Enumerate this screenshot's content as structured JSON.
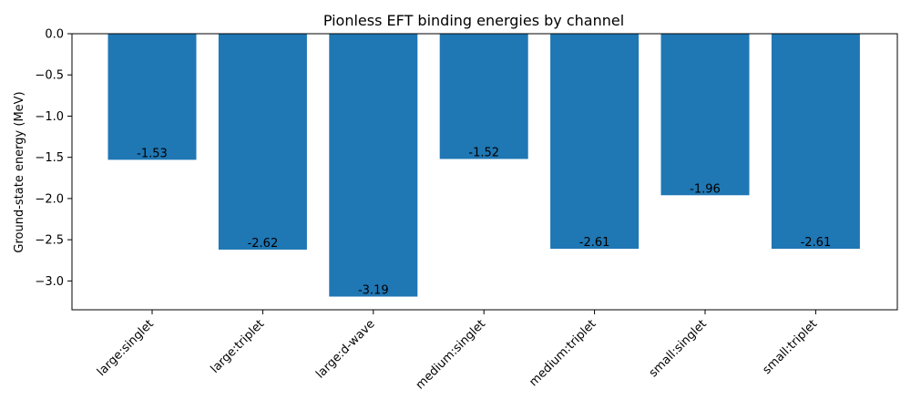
{
  "chart_data": {
    "type": "bar",
    "title": "Pionless EFT binding energies by channel",
    "xlabel": "",
    "ylabel": "Ground-state energy (MeV)",
    "categories": [
      "large:singlet",
      "large:triplet",
      "large:d-wave",
      "medium:singlet",
      "medium:triplet",
      "small:singlet",
      "small:triplet"
    ],
    "values": [
      -1.53,
      -2.62,
      -3.19,
      -1.52,
      -2.61,
      -1.96,
      -2.61
    ],
    "data_labels": [
      "-1.53",
      "-2.62",
      "-3.19",
      "-1.52",
      "-2.61",
      "-1.96",
      "-2.61"
    ],
    "ylim": [
      -3.35,
      0.0
    ],
    "yticks": [
      0.0,
      -0.5,
      -1.0,
      -1.5,
      -2.0,
      -2.5,
      -3.0
    ],
    "ytick_labels": [
      "0.0",
      "−0.5",
      "−1.0",
      "−1.5",
      "−2.0",
      "−2.5",
      "−3.0"
    ],
    "bar_color": "#1f77b4",
    "grid": false,
    "legend": "none"
  }
}
